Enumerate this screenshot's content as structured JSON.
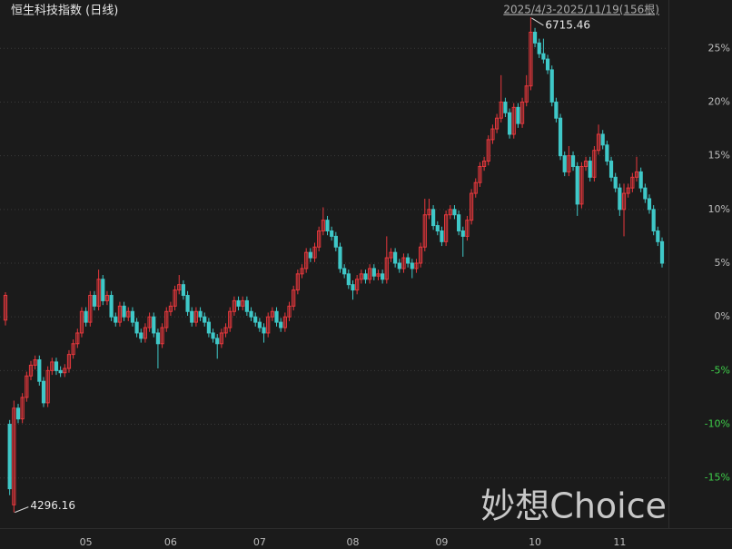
{
  "chart_data": {
    "type": "candlestick",
    "title": "恒生科技指数 (日线)",
    "range_label": "2025/4/3-2025/11/19(156根)",
    "watermark": "妙想Choice",
    "high_label": "6715.46",
    "low_label": "4296.16",
    "up_color": "#e8383d",
    "down_color": "#3fc8c8",
    "tick_color": "#bdbdbd",
    "negative_tick_color": "#3ecf4a",
    "grid": true,
    "ylim": [
      -19.5,
      29.5
    ],
    "yticks": [
      {
        "value": 25,
        "label": "25%"
      },
      {
        "value": 20,
        "label": "20%"
      },
      {
        "value": 15,
        "label": "15%"
      },
      {
        "value": 10,
        "label": "10%"
      },
      {
        "value": 5,
        "label": "5%"
      },
      {
        "value": 0,
        "label": "0%"
      },
      {
        "value": -5,
        "label": "-5%"
      },
      {
        "value": -10,
        "label": "-10%"
      },
      {
        "value": -15,
        "label": "-15%"
      }
    ],
    "categories": [
      null,
      null,
      null,
      null,
      null,
      null,
      null,
      null,
      null,
      null,
      null,
      null,
      null,
      null,
      null,
      null,
      null,
      null,
      null,
      "05",
      null,
      null,
      null,
      null,
      null,
      null,
      null,
      null,
      null,
      null,
      null,
      null,
      null,
      null,
      null,
      null,
      null,
      null,
      null,
      "06",
      null,
      null,
      null,
      null,
      null,
      null,
      null,
      null,
      null,
      null,
      null,
      null,
      null,
      null,
      null,
      null,
      null,
      null,
      null,
      null,
      "07",
      null,
      null,
      null,
      null,
      null,
      null,
      null,
      null,
      null,
      null,
      null,
      null,
      null,
      null,
      null,
      null,
      null,
      null,
      null,
      null,
      null,
      "08",
      null,
      null,
      null,
      null,
      null,
      null,
      null,
      null,
      null,
      null,
      null,
      null,
      null,
      null,
      null,
      null,
      null,
      null,
      null,
      null,
      "09",
      null,
      null,
      null,
      null,
      null,
      null,
      null,
      null,
      null,
      null,
      null,
      null,
      null,
      null,
      null,
      null,
      null,
      null,
      null,
      null,
      null,
      "10",
      null,
      null,
      null,
      null,
      null,
      null,
      null,
      null,
      null,
      null,
      null,
      null,
      null,
      null,
      null,
      null,
      null,
      null,
      null,
      "11",
      null,
      null,
      null,
      null,
      null,
      null,
      null,
      null,
      null,
      null
    ],
    "candles": [
      [
        -0.3,
        2.3,
        -0.8,
        2.0
      ],
      [
        -10.0,
        -9.6,
        -16.6,
        -16.0
      ],
      [
        -17.5,
        -7.8,
        -18.2,
        -8.5
      ],
      [
        -8.5,
        -8.1,
        -9.9,
        -9.5
      ],
      [
        -9.5,
        -7.1,
        -9.9,
        -7.5
      ],
      [
        -7.5,
        -5.1,
        -7.9,
        -5.5
      ],
      [
        -5.5,
        -4.1,
        -5.9,
        -4.5
      ],
      [
        -4.5,
        -3.6,
        -4.9,
        -4.0
      ],
      [
        -4.0,
        -3.6,
        -6.4,
        -6.0
      ],
      [
        -6.0,
        -5.6,
        -8.4,
        -8.0
      ],
      [
        -8.0,
        -4.6,
        -8.4,
        -5.0
      ],
      [
        -5.0,
        -3.8,
        -5.4,
        -4.2
      ],
      [
        -4.2,
        -3.8,
        -5.4,
        -5.0
      ],
      [
        -5.0,
        -4.6,
        -5.6,
        -5.2
      ],
      [
        -5.2,
        -4.4,
        -5.6,
        -4.8
      ],
      [
        -4.8,
        -3.1,
        -5.2,
        -3.5
      ],
      [
        -3.5,
        -2.1,
        -3.9,
        -2.5
      ],
      [
        -2.5,
        -1.1,
        -2.9,
        -1.5
      ],
      [
        -1.5,
        0.9,
        -1.9,
        0.5
      ],
      [
        0.5,
        0.9,
        -0.9,
        -0.5
      ],
      [
        -0.5,
        2.4,
        -0.9,
        2.0
      ],
      [
        2.0,
        2.4,
        0.6,
        1.0
      ],
      [
        1.0,
        4.4,
        0.6,
        3.5
      ],
      [
        3.5,
        3.9,
        1.1,
        1.5
      ],
      [
        1.5,
        2.4,
        1.1,
        2.0
      ],
      [
        2.0,
        2.4,
        -0.4,
        0.0
      ],
      [
        0.0,
        0.4,
        -0.9,
        -0.5
      ],
      [
        -0.5,
        1.4,
        -0.9,
        1.0
      ],
      [
        1.0,
        1.4,
        -0.4,
        0.0
      ],
      [
        0.0,
        0.9,
        -0.4,
        0.5
      ],
      [
        0.5,
        0.9,
        -0.9,
        -0.5
      ],
      [
        -0.5,
        -0.1,
        -1.9,
        -1.5
      ],
      [
        -1.5,
        -1.1,
        -2.4,
        -2.0
      ],
      [
        -2.0,
        -0.6,
        -2.4,
        -1.0
      ],
      [
        -1.0,
        0.4,
        -1.4,
        0.0
      ],
      [
        0.0,
        0.4,
        -1.9,
        -1.5
      ],
      [
        -1.5,
        -1.1,
        -4.8,
        -2.5
      ],
      [
        -2.5,
        -0.6,
        -2.9,
        -1.0
      ],
      [
        -1.0,
        0.9,
        -1.4,
        0.5
      ],
      [
        0.5,
        1.4,
        0.1,
        1.0
      ],
      [
        1.0,
        2.9,
        0.6,
        2.5
      ],
      [
        2.5,
        3.9,
        2.1,
        3.0
      ],
      [
        3.0,
        3.4,
        1.6,
        2.0
      ],
      [
        2.0,
        2.4,
        0.1,
        0.5
      ],
      [
        0.5,
        0.9,
        -0.9,
        -0.5
      ],
      [
        -0.5,
        0.9,
        -0.9,
        0.5
      ],
      [
        0.5,
        0.9,
        -0.4,
        0.0
      ],
      [
        0.0,
        0.4,
        -0.9,
        -0.5
      ],
      [
        -0.5,
        -0.1,
        -1.9,
        -1.5
      ],
      [
        -1.5,
        -1.1,
        -2.4,
        -2.0
      ],
      [
        -2.0,
        -1.6,
        -3.9,
        -2.5
      ],
      [
        -2.5,
        -1.1,
        -2.9,
        -1.5
      ],
      [
        -1.5,
        -0.6,
        -1.9,
        -1.0
      ],
      [
        -1.0,
        0.9,
        -1.4,
        0.5
      ],
      [
        0.5,
        1.9,
        0.1,
        1.5
      ],
      [
        1.5,
        1.9,
        0.6,
        1.0
      ],
      [
        1.0,
        1.9,
        0.6,
        1.5
      ],
      [
        1.5,
        1.9,
        0.1,
        0.5
      ],
      [
        0.5,
        0.9,
        -0.4,
        0.0
      ],
      [
        0.0,
        0.4,
        -0.9,
        -0.5
      ],
      [
        -0.5,
        -0.1,
        -1.4,
        -1.0
      ],
      [
        -1.0,
        -0.6,
        -2.4,
        -1.5
      ],
      [
        -1.5,
        0.4,
        -1.9,
        0.0
      ],
      [
        0.0,
        0.9,
        -0.4,
        0.5
      ],
      [
        0.5,
        0.9,
        -0.9,
        -0.5
      ],
      [
        -0.5,
        -0.1,
        -1.4,
        -1.0
      ],
      [
        -1.0,
        0.4,
        -1.4,
        0.0
      ],
      [
        0.0,
        1.4,
        -0.4,
        1.0
      ],
      [
        1.0,
        2.9,
        0.6,
        2.5
      ],
      [
        2.5,
        4.4,
        2.1,
        4.0
      ],
      [
        4.0,
        4.9,
        3.6,
        4.5
      ],
      [
        4.5,
        6.4,
        4.1,
        6.0
      ],
      [
        6.0,
        6.4,
        5.1,
        5.5
      ],
      [
        5.5,
        6.9,
        5.1,
        6.5
      ],
      [
        6.5,
        8.4,
        6.1,
        8.0
      ],
      [
        8.0,
        10.2,
        7.6,
        9.0
      ],
      [
        9.0,
        9.4,
        7.6,
        8.0
      ],
      [
        8.0,
        8.4,
        7.1,
        7.5
      ],
      [
        7.5,
        7.9,
        6.1,
        6.5
      ],
      [
        6.5,
        6.9,
        4.1,
        4.5
      ],
      [
        4.5,
        4.9,
        3.6,
        4.0
      ],
      [
        4.0,
        4.4,
        2.6,
        3.0
      ],
      [
        3.0,
        3.4,
        1.6,
        2.5
      ],
      [
        2.5,
        3.9,
        2.1,
        3.5
      ],
      [
        3.5,
        4.4,
        3.1,
        4.0
      ],
      [
        4.0,
        4.4,
        3.1,
        3.5
      ],
      [
        3.5,
        4.9,
        3.1,
        4.5
      ],
      [
        4.5,
        4.9,
        3.4,
        3.8
      ],
      [
        3.8,
        4.4,
        3.4,
        4.0
      ],
      [
        4.0,
        4.4,
        3.1,
        3.5
      ],
      [
        3.5,
        7.5,
        3.1,
        5.5
      ],
      [
        5.5,
        6.4,
        5.1,
        6.0
      ],
      [
        6.0,
        6.4,
        4.6,
        5.0
      ],
      [
        5.0,
        5.4,
        4.1,
        4.5
      ],
      [
        4.5,
        5.9,
        4.1,
        5.5
      ],
      [
        5.5,
        5.9,
        4.6,
        5.0
      ],
      [
        5.0,
        5.4,
        3.6,
        4.5
      ],
      [
        4.5,
        5.4,
        4.1,
        5.0
      ],
      [
        5.0,
        6.9,
        4.6,
        6.5
      ],
      [
        6.5,
        11.0,
        6.1,
        9.5
      ],
      [
        9.5,
        11.0,
        9.1,
        10.0
      ],
      [
        10.0,
        10.4,
        8.1,
        8.5
      ],
      [
        8.5,
        8.9,
        7.6,
        8.0
      ],
      [
        8.0,
        8.4,
        6.6,
        7.0
      ],
      [
        7.0,
        9.9,
        6.6,
        9.5
      ],
      [
        9.5,
        10.4,
        9.1,
        10.0
      ],
      [
        10.0,
        10.4,
        9.1,
        9.5
      ],
      [
        9.5,
        9.9,
        7.6,
        8.0
      ],
      [
        8.0,
        8.4,
        5.6,
        7.5
      ],
      [
        7.5,
        9.4,
        7.1,
        9.0
      ],
      [
        9.0,
        11.9,
        8.6,
        11.5
      ],
      [
        11.5,
        12.9,
        11.1,
        12.5
      ],
      [
        12.5,
        14.4,
        12.1,
        14.0
      ],
      [
        14.0,
        14.9,
        13.6,
        14.5
      ],
      [
        14.5,
        16.9,
        14.1,
        16.5
      ],
      [
        16.5,
        17.9,
        16.1,
        17.5
      ],
      [
        17.5,
        18.9,
        17.1,
        18.5
      ],
      [
        18.5,
        22.5,
        18.1,
        20.0
      ],
      [
        20.0,
        20.4,
        18.6,
        19.0
      ],
      [
        19.0,
        19.4,
        16.6,
        17.0
      ],
      [
        17.0,
        19.9,
        16.6,
        19.5
      ],
      [
        19.5,
        19.9,
        17.6,
        18.0
      ],
      [
        18.0,
        20.4,
        17.6,
        20.0
      ],
      [
        20.0,
        22.5,
        19.6,
        21.5
      ],
      [
        21.5,
        27.9,
        21.1,
        26.5
      ],
      [
        26.5,
        26.9,
        25.1,
        25.5
      ],
      [
        25.5,
        25.9,
        24.1,
        24.5
      ],
      [
        24.5,
        25.9,
        23.6,
        24.0
      ],
      [
        24.0,
        24.4,
        22.6,
        23.0
      ],
      [
        23.0,
        23.4,
        19.6,
        20.0
      ],
      [
        20.0,
        20.4,
        18.1,
        18.5
      ],
      [
        18.5,
        18.9,
        14.6,
        15.0
      ],
      [
        15.0,
        15.4,
        13.1,
        13.5
      ],
      [
        13.5,
        15.9,
        13.1,
        15.0
      ],
      [
        15.0,
        15.4,
        13.6,
        14.0
      ],
      [
        14.0,
        14.4,
        9.4,
        10.5
      ],
      [
        10.5,
        14.4,
        10.1,
        14.0
      ],
      [
        14.0,
        14.9,
        13.6,
        14.5
      ],
      [
        14.5,
        14.9,
        12.6,
        13.0
      ],
      [
        13.0,
        15.9,
        12.6,
        15.5
      ],
      [
        15.5,
        17.9,
        15.1,
        17.0
      ],
      [
        17.0,
        17.4,
        15.6,
        16.0
      ],
      [
        16.0,
        16.4,
        14.1,
        14.5
      ],
      [
        14.5,
        14.9,
        12.6,
        13.0
      ],
      [
        13.0,
        13.4,
        11.6,
        12.0
      ],
      [
        12.0,
        12.4,
        9.4,
        10.0
      ],
      [
        10.0,
        12.4,
        7.5,
        11.5
      ],
      [
        11.5,
        12.4,
        11.1,
        12.0
      ],
      [
        12.0,
        13.4,
        11.6,
        13.0
      ],
      [
        13.0,
        14.9,
        12.6,
        13.5
      ],
      [
        13.5,
        13.9,
        11.6,
        12.0
      ],
      [
        12.0,
        12.4,
        10.6,
        11.0
      ],
      [
        11.0,
        11.4,
        9.6,
        10.0
      ],
      [
        10.0,
        10.4,
        7.6,
        8.0
      ],
      [
        8.0,
        8.4,
        6.6,
        7.0
      ],
      [
        7.0,
        7.4,
        4.6,
        5.0
      ]
    ]
  }
}
